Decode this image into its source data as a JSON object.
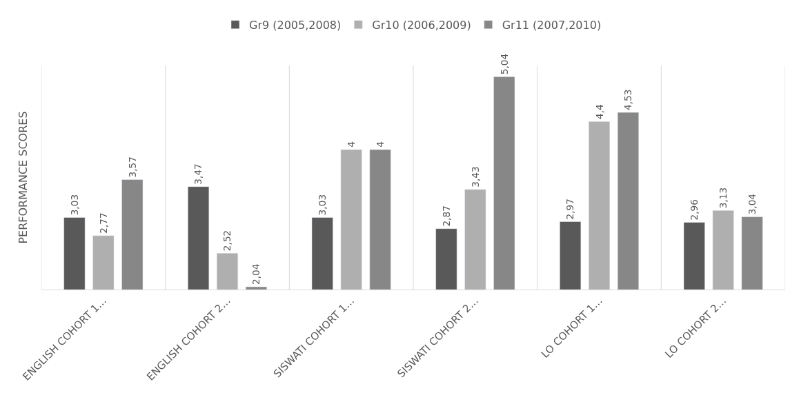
{
  "chart_data": {
    "type": "bar",
    "ylabel": "PERFORMANCE SCORES",
    "categories": [
      "ENGLISH COHORT 1…",
      "ENGLISH COHORT 2…",
      "SISWATI COHORT 1…",
      "SISWATI COHORT 2…",
      "LO COHORT 1…",
      "LO COHORT 2…"
    ],
    "series": [
      {
        "name": "Gr9 (2005,2008)",
        "color": "#595959",
        "values": [
          3.03,
          3.47,
          3.03,
          2.87,
          2.97,
          2.96
        ],
        "value_labels": [
          "3,03",
          "3,47",
          "3,03",
          "2,87",
          "2,97",
          "2,96"
        ]
      },
      {
        "name": "Gr10 (2006,2009)",
        "color": "#afafaf",
        "values": [
          2.77,
          2.52,
          4,
          3.43,
          4.4,
          3.13
        ],
        "value_labels": [
          "2,77",
          "2,52",
          "4",
          "3,43",
          "4,4",
          "3,13"
        ]
      },
      {
        "name": "Gr11 (2007,2010)",
        "color": "#878787",
        "values": [
          3.57,
          2.04,
          4,
          5.04,
          4.53,
          3.04
        ],
        "value_labels": [
          "3,57",
          "2,04",
          "4",
          "5,04",
          "4,53",
          "3,04"
        ]
      }
    ],
    "ylim": [
      2,
      5.2
    ],
    "tick_labels": "x",
    "grid": "x",
    "legend": "top"
  }
}
